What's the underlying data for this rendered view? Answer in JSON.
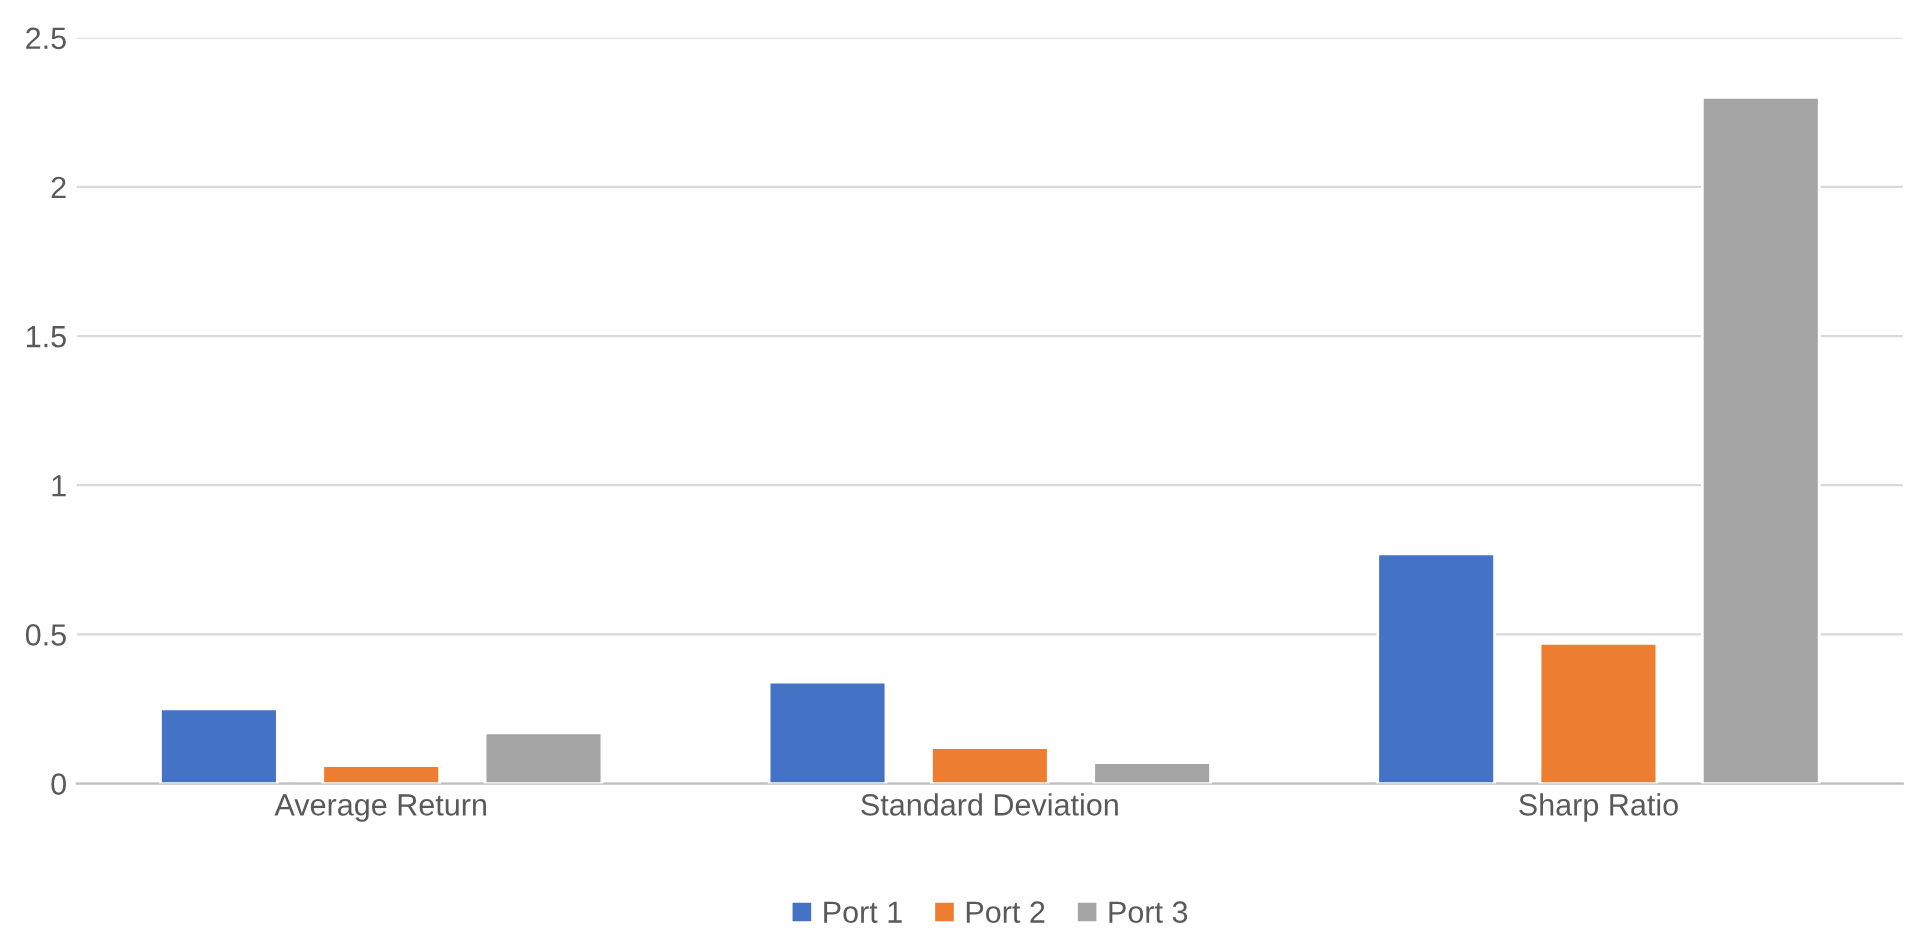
{
  "chart_data": {
    "type": "bar",
    "categories": [
      "Average Return",
      "Standard Deviation",
      "Sharp Ratio"
    ],
    "series": [
      {
        "name": "Port 1",
        "color": "#4472c4",
        "values": [
          0.25,
          0.34,
          0.77
        ]
      },
      {
        "name": "Port 2",
        "color": "#ed7d31",
        "values": [
          0.06,
          0.12,
          0.47
        ]
      },
      {
        "name": "Port 3",
        "color": "#a5a5a5",
        "values": [
          0.17,
          0.07,
          2.3
        ]
      }
    ],
    "ylim": [
      0,
      2.5
    ],
    "yticks": [
      0,
      0.5,
      1,
      1.5,
      2,
      2.5
    ],
    "grid": "y",
    "legend": "bottom"
  }
}
